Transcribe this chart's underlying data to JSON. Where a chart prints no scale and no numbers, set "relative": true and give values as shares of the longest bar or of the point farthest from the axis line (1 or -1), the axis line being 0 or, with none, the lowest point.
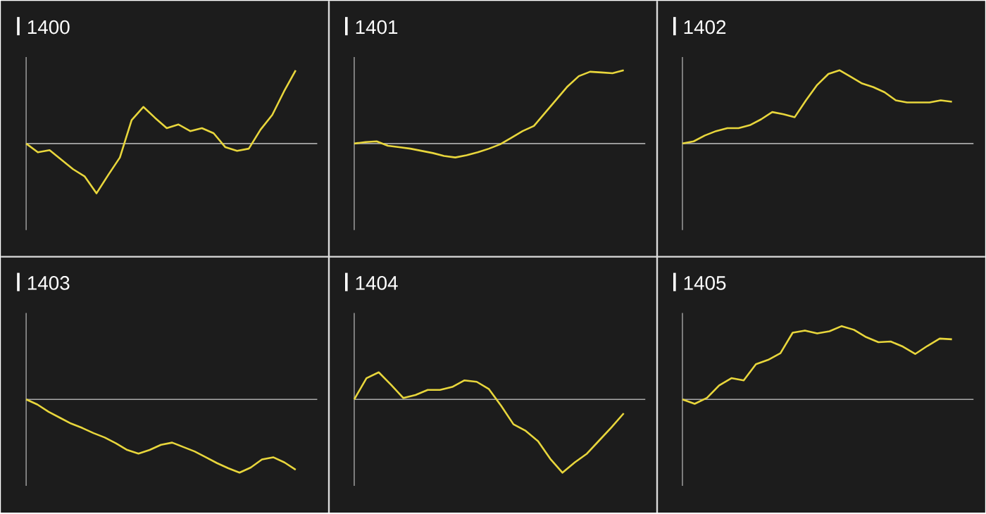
{
  "chart_data": [
    {
      "type": "line",
      "title": "1400",
      "relative": true,
      "categories": [
        null,
        null,
        null,
        null,
        null,
        null,
        null,
        null,
        null,
        null,
        null,
        null,
        null,
        null,
        null,
        null,
        null,
        null,
        null,
        null,
        null,
        null,
        null,
        null
      ],
      "series": [
        {
          "color": "#e8d63c",
          "values": [
            0,
            -0.12,
            -0.09,
            -0.22,
            -0.35,
            -0.45,
            -0.68,
            -0.43,
            -0.19,
            0.32,
            0.5,
            0.35,
            0.21,
            0.26,
            0.17,
            0.21,
            0.14,
            -0.05,
            -0.1,
            -0.07,
            0.19,
            0.39,
            0.71,
            1.0
          ]
        }
      ]
    },
    {
      "type": "line",
      "title": "1401",
      "relative": true,
      "categories": [
        null,
        null,
        null,
        null,
        null,
        null,
        null,
        null,
        null,
        null,
        null,
        null,
        null,
        null,
        null,
        null,
        null,
        null,
        null,
        null,
        null,
        null,
        null,
        null,
        null
      ],
      "series": [
        {
          "color": "#e8d63c",
          "values": [
            0,
            0.02,
            0.03,
            -0.03,
            -0.05,
            -0.07,
            -0.1,
            -0.13,
            -0.17,
            -0.19,
            -0.16,
            -0.12,
            -0.07,
            -0.01,
            0.08,
            0.17,
            0.24,
            0.42,
            0.6,
            0.78,
            0.92,
            0.98,
            0.97,
            0.96,
            1.0
          ]
        }
      ]
    },
    {
      "type": "line",
      "title": "1402",
      "relative": true,
      "categories": [
        null,
        null,
        null,
        null,
        null,
        null,
        null,
        null,
        null,
        null,
        null,
        null,
        null,
        null,
        null,
        null,
        null,
        null,
        null,
        null,
        null,
        null,
        null,
        null,
        null
      ],
      "series": [
        {
          "color": "#e8d63c",
          "values": [
            0,
            0.03,
            0.11,
            0.17,
            0.21,
            0.21,
            0.25,
            0.33,
            0.43,
            0.4,
            0.36,
            0.59,
            0.8,
            0.95,
            1.0,
            0.91,
            0.82,
            0.77,
            0.7,
            0.59,
            0.56,
            0.56,
            0.56,
            0.59,
            0.57
          ]
        }
      ]
    },
    {
      "type": "line",
      "title": "1403",
      "relative": true,
      "categories": [
        null,
        null,
        null,
        null,
        null,
        null,
        null,
        null,
        null,
        null,
        null,
        null,
        null,
        null,
        null,
        null,
        null,
        null,
        null,
        null,
        null,
        null,
        null,
        null,
        null
      ],
      "series": [
        {
          "color": "#e8d63c",
          "values": [
            0,
            -0.07,
            -0.17,
            -0.25,
            -0.33,
            -0.39,
            -0.46,
            -0.52,
            -0.6,
            -0.69,
            -0.74,
            -0.69,
            -0.62,
            -0.59,
            -0.65,
            -0.71,
            -0.79,
            -0.87,
            -0.94,
            -1.0,
            -0.93,
            -0.82,
            -0.79,
            -0.86,
            -0.96
          ]
        }
      ]
    },
    {
      "type": "line",
      "title": "1404",
      "relative": true,
      "categories": [
        null,
        null,
        null,
        null,
        null,
        null,
        null,
        null,
        null,
        null,
        null,
        null,
        null,
        null,
        null,
        null,
        null,
        null,
        null,
        null,
        null,
        null,
        null
      ],
      "series": [
        {
          "color": "#e8d63c",
          "values": [
            0,
            0.29,
            0.37,
            0.2,
            0.02,
            0.06,
            0.13,
            0.13,
            0.17,
            0.26,
            0.24,
            0.14,
            -0.09,
            -0.34,
            -0.43,
            -0.57,
            -0.81,
            -1.0,
            -0.86,
            -0.74,
            -0.56,
            -0.38,
            -0.19
          ]
        }
      ]
    },
    {
      "type": "line",
      "title": "1405",
      "relative": true,
      "categories": [
        null,
        null,
        null,
        null,
        null,
        null,
        null,
        null,
        null,
        null,
        null,
        null,
        null,
        null,
        null,
        null,
        null,
        null,
        null,
        null,
        null,
        null,
        null
      ],
      "series": [
        {
          "color": "#e8d63c",
          "values": [
            0,
            -0.06,
            0.02,
            0.19,
            0.29,
            0.26,
            0.48,
            0.54,
            0.63,
            0.91,
            0.94,
            0.9,
            0.93,
            1.0,
            0.95,
            0.85,
            0.78,
            0.79,
            0.72,
            0.62,
            0.73,
            0.83,
            0.82
          ]
        }
      ]
    }
  ]
}
